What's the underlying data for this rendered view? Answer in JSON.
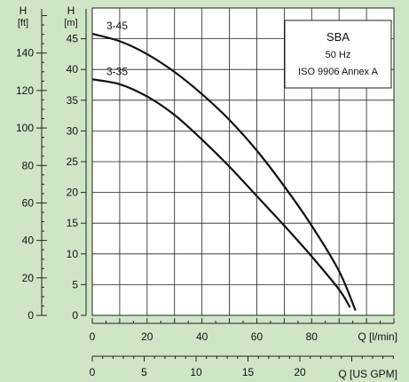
{
  "chart_data": {
    "type": "line",
    "legend_box": {
      "title": "SBA",
      "line1": "50 Hz",
      "line2": "ISO 9906 Annex A",
      "placement": "top-right"
    },
    "y_axis_m": {
      "title": "H",
      "unit": "[m]",
      "range": [
        0,
        50
      ],
      "ticks": [
        0,
        5,
        10,
        15,
        20,
        25,
        30,
        35,
        40,
        45
      ],
      "tick_labels": [
        "0",
        "5",
        "10",
        "15",
        "20",
        "25",
        "30",
        "35",
        "40",
        "45"
      ]
    },
    "y_axis_ft": {
      "title": "H",
      "unit": "[ft]",
      "ticks": [
        0,
        20,
        40,
        60,
        80,
        100,
        120,
        140
      ],
      "tick_labels": [
        "0",
        "20",
        "40",
        "60",
        "80",
        "100",
        "120",
        "140"
      ]
    },
    "x_axis_lmin": {
      "label": "Q [l/min]",
      "range": [
        0,
        110
      ],
      "ticks": [
        0,
        20,
        40,
        60,
        80
      ],
      "tick_labels": [
        "0",
        "20",
        "40",
        "60",
        "80"
      ]
    },
    "x_axis_gpm": {
      "label": "Q [US GPM]",
      "ticks": [
        0,
        5,
        10,
        15,
        20
      ],
      "tick_labels": [
        "0",
        "5",
        "10",
        "15",
        "20"
      ]
    },
    "grid": true,
    "series": [
      {
        "name": "3-45",
        "x": [
          0,
          10,
          20,
          30,
          40,
          50,
          60,
          70,
          80,
          90,
          96
        ],
        "y": [
          45.8,
          44.6,
          42.5,
          39.6,
          36.0,
          31.8,
          26.8,
          21.0,
          14.6,
          7.2,
          0.8
        ]
      },
      {
        "name": "3-35",
        "x": [
          0,
          10,
          20,
          30,
          40,
          50,
          60,
          70,
          80,
          90,
          94
        ],
        "y": [
          38.4,
          37.6,
          35.6,
          32.6,
          28.6,
          24.2,
          19.4,
          14.6,
          9.6,
          4.2,
          1.3
        ]
      }
    ]
  }
}
